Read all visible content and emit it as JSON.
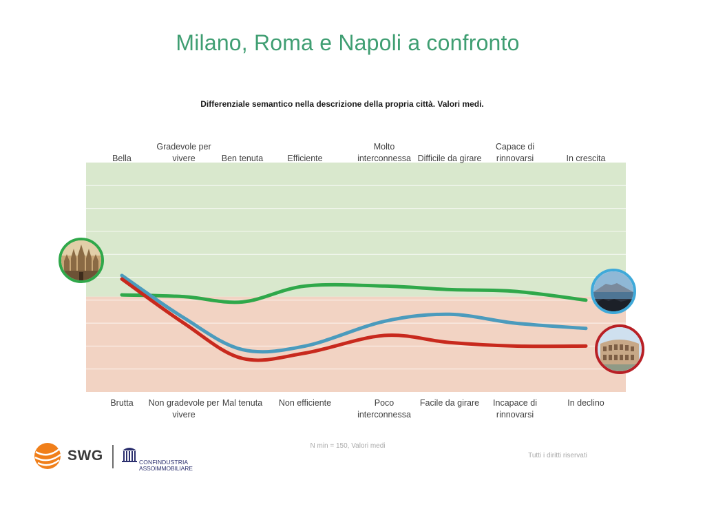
{
  "page": {
    "title": "Milano, Roma e Napoli a confronto",
    "footnote": "N min = 150, Valori medi",
    "rights": "Tutti i diritti riservati"
  },
  "logos": {
    "swg": "SWG",
    "confindustria_line1": "CONFINDUSTRIA",
    "confindustria_line2": "ASSOIMMOBILIARE"
  },
  "chart_data": {
    "type": "line",
    "title": "Differenziale semantico nella descrizione della propria città. Valori medi.",
    "top_labels": [
      "Bella",
      "Gradevole per vivere",
      "Ben tenuta",
      "Efficiente",
      "Molto interconnessa",
      "Difficile da girare",
      "Capace di rinnovarsi",
      "In crescita"
    ],
    "bottom_labels": [
      "Brutta",
      "Non gradevole per vivere",
      "Mal tenuta",
      "Non efficiente",
      "Poco interconnessa",
      "Facile da girare",
      "Incapace di rinnovarsi",
      "In declino"
    ],
    "ylim": [
      0,
      13
    ],
    "midpoint": 5.4,
    "grid": true,
    "zones": [
      {
        "from": 5.4,
        "to": 13,
        "color": "#d9e8cd"
      },
      {
        "from": 0,
        "to": 5.4,
        "color": "#f2d3c3"
      }
    ],
    "series": [
      {
        "color": "#2fa84a",
        "values": [
          5.5,
          5.4,
          5.1,
          6.0,
          6.0,
          5.8,
          5.7,
          5.2
        ]
      },
      {
        "color": "#4b9bbd",
        "values": [
          6.6,
          4.2,
          2.4,
          2.6,
          4.0,
          4.4,
          3.9,
          3.6
        ]
      },
      {
        "color": "#c8291d",
        "values": [
          6.4,
          3.9,
          1.9,
          2.2,
          3.2,
          2.8,
          2.6,
          2.6
        ]
      }
    ]
  },
  "badges": {
    "colors": {
      "milano": "#2fa84a",
      "napoli": "#3fa9d9",
      "roma": "#b81f25"
    }
  }
}
